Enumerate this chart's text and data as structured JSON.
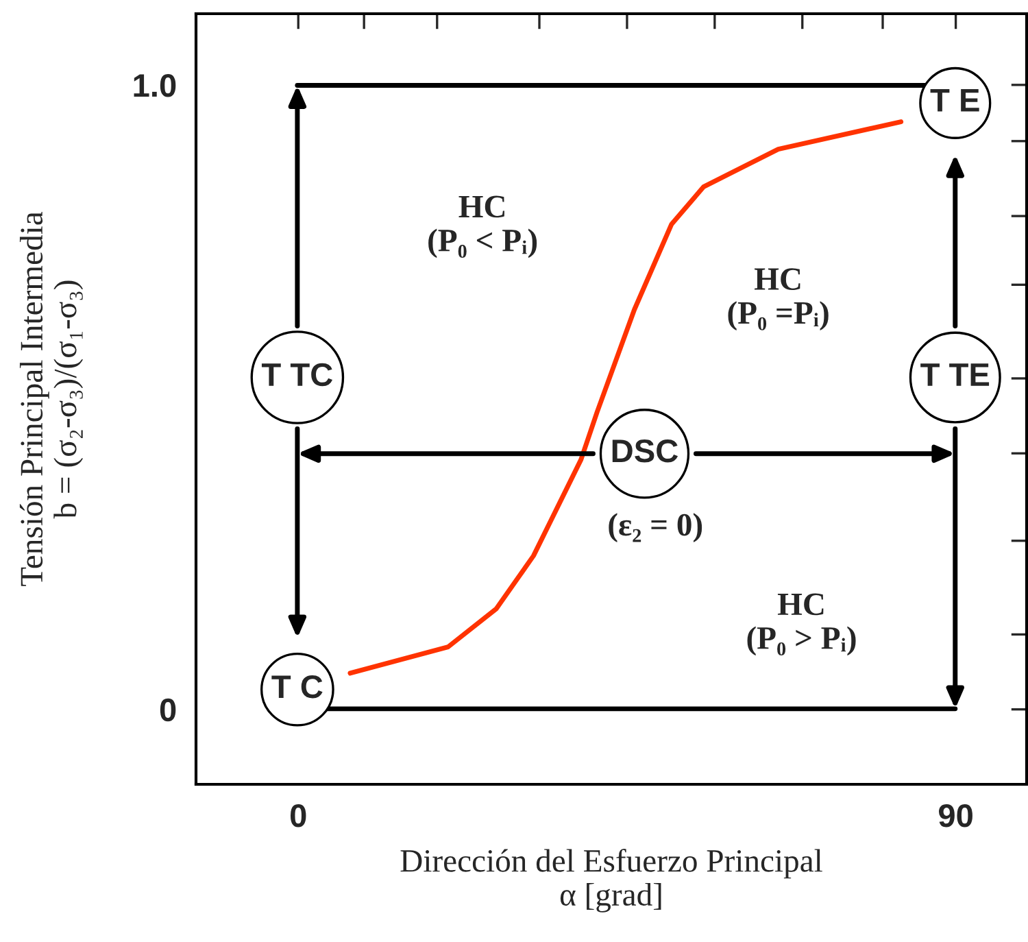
{
  "chart_data": {
    "type": "line",
    "xlabel": "Dirección del Esfuerzo Principal\nα [grad]",
    "ylabel": "Tensión Principal Intermedia\nb = (σ₂-σ₃)/(σ₁-σ₃)",
    "xlim": [
      -14,
      99.7
    ],
    "ylim": [
      -0.12,
      1.114
    ],
    "xticks": [
      0,
      {
        "value": 9,
        "label": null
      },
      {
        "value": 19,
        "label": null
      },
      {
        "value": 33,
        "label": null
      },
      {
        "value": 45,
        "label": null
      },
      {
        "value": 57,
        "label": null
      },
      {
        "value": 69,
        "label": null
      },
      {
        "value": 80,
        "label": null
      },
      90
    ],
    "yticks": [
      0,
      {
        "value": 0.12,
        "label": null
      },
      {
        "value": 0.27,
        "label": null
      },
      {
        "value": 0.41,
        "label": null
      },
      {
        "value": 0.53,
        "label": null
      },
      {
        "value": 0.68,
        "label": null
      },
      {
        "value": 0.79,
        "label": null
      },
      {
        "value": 0.91,
        "label": null
      },
      {
        "value": 1.0,
        "label": "1.0"
      }
    ],
    "series": [
      {
        "color": "#ff3300",
        "x": [
          7.1,
          20.5,
          27.1,
          32.2,
          38.7,
          40.9,
          46,
          51.1,
          55.5,
          65.7,
          82.5
        ],
        "values": [
          0.058,
          0.1,
          0.161,
          0.246,
          0.4,
          0.476,
          0.64,
          0.777,
          0.837,
          0.897,
          0.941
        ]
      }
    ],
    "annotations": [
      "T C",
      "T TC",
      "T E",
      "T TE",
      "DSC",
      "(ε₂ = 0)",
      "HC\n(P₀ < Pᵢ)",
      "HC\n(P₀ =Pᵢ)",
      "HC\n(P₀ > Pᵢ)"
    ],
    "grid": false
  }
}
